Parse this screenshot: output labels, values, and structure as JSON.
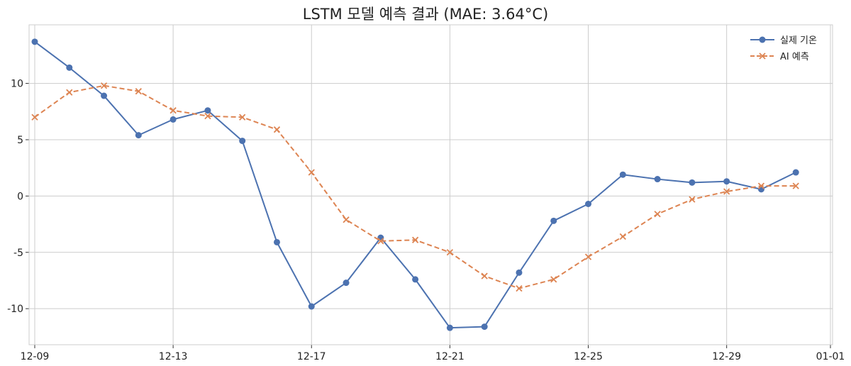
{
  "chart_data": {
    "type": "line",
    "title": "LSTM 모델 예측 결과 (MAE: 3.64°C)",
    "xlabel": "",
    "ylabel": "",
    "x": [
      "12-09",
      "12-10",
      "12-11",
      "12-12",
      "12-13",
      "12-14",
      "12-15",
      "12-16",
      "12-17",
      "12-18",
      "12-19",
      "12-20",
      "12-21",
      "12-22",
      "12-23",
      "12-24",
      "12-25",
      "12-26",
      "12-27",
      "12-28",
      "12-29",
      "12-30",
      "12-31"
    ],
    "x_ticks": [
      "12-09",
      "12-13",
      "12-17",
      "12-21",
      "12-25",
      "12-29",
      "01-01"
    ],
    "y_ticks": [
      "-10",
      "-5",
      "0",
      "5",
      "10"
    ],
    "xlim": [
      "12-08",
      "01-01"
    ],
    "ylim": [
      -13.2,
      15.2
    ],
    "grid": true,
    "legend_position": "top-right",
    "series": [
      {
        "name": "실제 기온",
        "style": "solid",
        "marker": "circle",
        "color": "#4c72b0",
        "values": [
          13.7,
          11.4,
          8.9,
          5.4,
          6.8,
          7.6,
          4.9,
          -4.1,
          -9.8,
          -7.7,
          -3.7,
          -7.4,
          -11.7,
          -11.6,
          -6.8,
          -2.2,
          -0.7,
          1.9,
          1.5,
          1.2,
          1.3,
          0.6,
          2.1
        ]
      },
      {
        "name": "AI 예측",
        "style": "dashed",
        "marker": "x",
        "color": "#dd8452",
        "values": [
          7.0,
          9.2,
          9.8,
          9.3,
          7.6,
          7.1,
          7.0,
          5.9,
          2.1,
          -2.1,
          -4.0,
          -3.9,
          -5.0,
          -7.1,
          -8.2,
          -7.4,
          -5.4,
          -3.6,
          -1.6,
          -0.3,
          0.4,
          0.9,
          0.9
        ]
      }
    ]
  }
}
